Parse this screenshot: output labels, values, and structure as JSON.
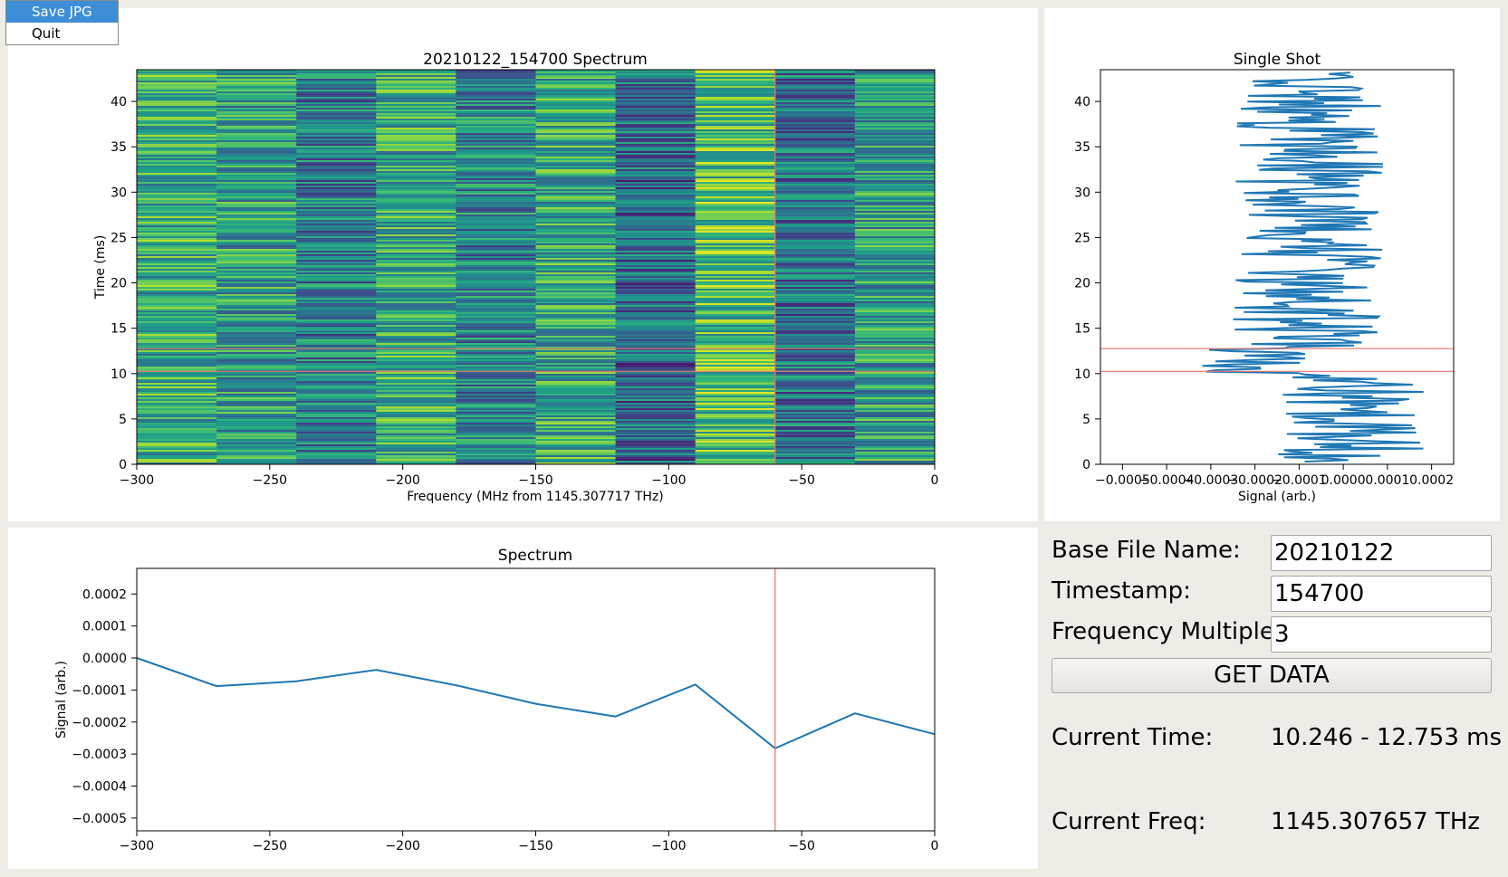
{
  "menu": {
    "items": [
      {
        "label": "Save JPG",
        "active": true
      },
      {
        "label": "Quit",
        "active": false
      }
    ]
  },
  "controls": {
    "base_file_name": {
      "label": "Base File Name:",
      "value": "20210122"
    },
    "timestamp": {
      "label": "Timestamp:",
      "value": "154700"
    },
    "frequency_multiple": {
      "label": "Frequency Multiple:",
      "value": "3"
    },
    "get_data_label": "GET DATA",
    "current_time": {
      "label": "Current Time:",
      "value": "10.246 - 12.753 ms"
    },
    "current_freq": {
      "label": "Current Freq:",
      "value": "1145.307657 THz"
    }
  },
  "colors": {
    "line": "#1f77b4",
    "marker": "#e8736c",
    "window_bg": "#efebe7"
  },
  "chart_data": [
    {
      "id": "spectrogram",
      "type": "heatmap",
      "title": "20210122_154700 Spectrum",
      "xlabel": "Frequency (MHz from 1145.307717 THz)",
      "ylabel": "Time (ms)",
      "xlim": [
        -300,
        0
      ],
      "ylim": [
        0,
        43.5
      ],
      "xticks": [
        -300,
        -250,
        -200,
        -150,
        -100,
        -50,
        0
      ],
      "yticks": [
        0,
        5,
        10,
        15,
        20,
        25,
        30,
        35,
        40
      ],
      "column_edges": [
        -300,
        -270,
        -240,
        -210,
        -180,
        -150,
        -120,
        -90,
        -60,
        -30,
        0
      ],
      "column_means": [
        0.62,
        0.55,
        0.42,
        0.62,
        0.45,
        0.6,
        0.35,
        0.7,
        0.38,
        0.55
      ],
      "colormap": "viridis",
      "markers": {
        "vertical_x": -60,
        "horizontal_y": [
          10.246,
          12.753
        ]
      }
    },
    {
      "id": "single-shot",
      "type": "line",
      "title": "Single Shot",
      "xlabel": "Signal (arb.)",
      "xlim": [
        -0.00055,
        0.00025
      ],
      "ylim": [
        0,
        43.5
      ],
      "xticks": [
        -0.0005,
        -0.0004,
        -0.0003,
        -0.0002,
        -0.0001,
        0.0,
        0.0001,
        0.0002
      ],
      "xtick_labels": [
        "−0.0005",
        "−0.0004",
        "−0.0003",
        "−0.0002",
        "−0.0001",
        "0.0000",
        "0.0001",
        "0.0002"
      ],
      "yticks": [
        0,
        5,
        10,
        15,
        20,
        25,
        30,
        35,
        40
      ],
      "markers": {
        "horizontal_y": [
          10.246,
          12.753
        ]
      }
    },
    {
      "id": "spectrum",
      "type": "line",
      "title": "Spectrum",
      "ylabel": "Signal (arb.)",
      "xlim": [
        -300,
        0
      ],
      "ylim": [
        -0.00054,
        0.00028
      ],
      "xticks": [
        -300,
        -250,
        -200,
        -150,
        -100,
        -50,
        0
      ],
      "yticks": [
        0.0002,
        0.0001,
        0.0,
        -0.0001,
        -0.0002,
        -0.0003,
        -0.0004,
        -0.0005
      ],
      "ytick_labels": [
        "0.0002",
        "0.0001",
        "0.0000",
        "−0.0001",
        "−0.0002",
        "−0.0003",
        "−0.0004",
        "−0.0005"
      ],
      "x": [
        -300,
        -270,
        -240,
        -210,
        -180,
        -150,
        -120,
        -90,
        -60,
        -30,
        0
      ],
      "values": [
        0.0,
        -8.8e-05,
        -7.3e-05,
        -3.7e-05,
        -8.5e-05,
        -0.000143,
        -0.000183,
        -8.3e-05,
        -0.000282,
        -0.000173,
        -0.000238
      ],
      "markers": {
        "vertical_x": -60
      }
    }
  ]
}
